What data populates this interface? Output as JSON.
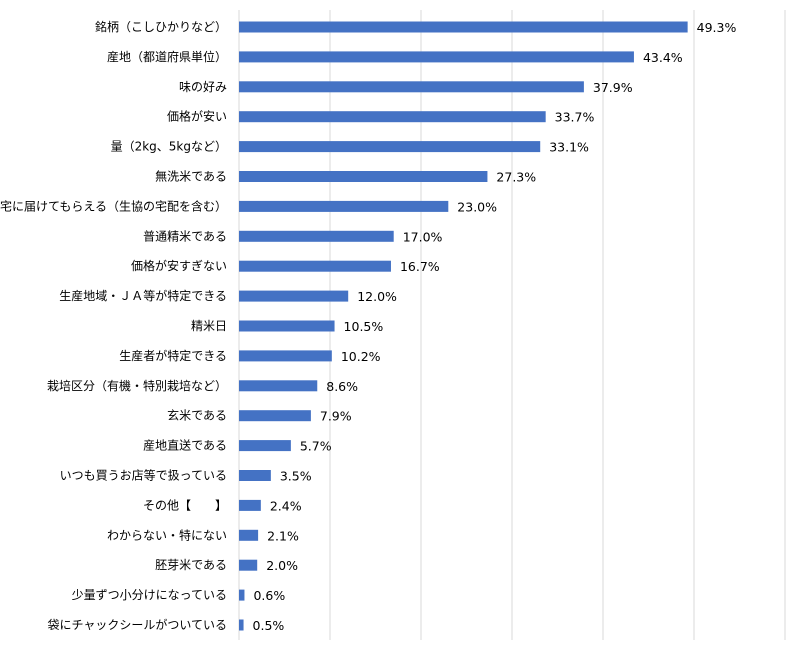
{
  "chart_data": {
    "type": "bar",
    "orientation": "horizontal",
    "title": "",
    "xlabel": "",
    "ylabel": "",
    "xlim": [
      0,
      60
    ],
    "grid": true,
    "gridline_values": [
      0,
      10,
      20,
      30,
      40,
      50,
      60
    ],
    "bar_color": "#4472C4",
    "value_suffix": "%",
    "categories": [
      "銘柄（こしひかりなど）",
      "産地（都道府県単位）",
      "味の好み",
      "価格が安い",
      "量（2kg、5kgなど）",
      "無洗米である",
      "自宅に届けてもらえる（生協の宅配を含む）",
      "普通精米である",
      "価格が安すぎない",
      "生産地域・ＪＡ等が特定できる",
      "精米日",
      "生産者が特定できる",
      "栽培区分（有機・特別栽培など）",
      "玄米である",
      "産地直送である",
      "いつも買うお店等で扱っている",
      "その他【　　】",
      "わからない・特にない",
      "胚芽米である",
      "少量ずつ小分けになっている",
      "袋にチャックシールがついている"
    ],
    "values": [
      49.3,
      43.4,
      37.9,
      33.7,
      33.1,
      27.3,
      23.0,
      17.0,
      16.7,
      12.0,
      10.5,
      10.2,
      8.6,
      7.9,
      5.7,
      3.5,
      2.4,
      2.1,
      2.0,
      0.6,
      0.5
    ],
    "value_labels": [
      "49.3%",
      "43.4%",
      "37.9%",
      "33.7%",
      "33.1%",
      "27.3%",
      "23.0%",
      "17.0%",
      "16.7%",
      "12.0%",
      "10.5%",
      "10.2%",
      "8.6%",
      "7.9%",
      "5.7%",
      "3.5%",
      "2.4%",
      "2.1%",
      "2.0%",
      "0.6%",
      "0.5%"
    ]
  }
}
